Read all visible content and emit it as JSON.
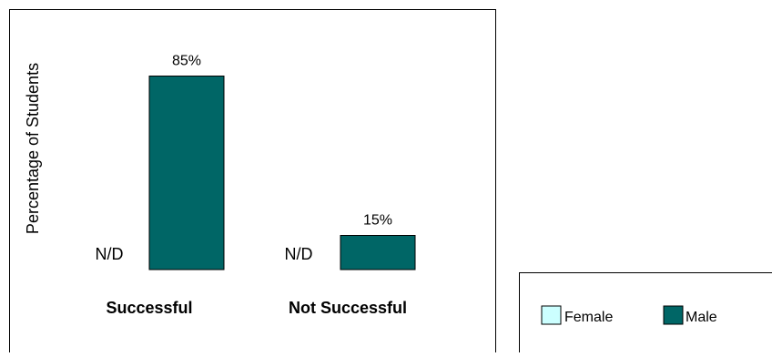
{
  "chart_data": {
    "type": "bar",
    "ylabel": "Percentage of Students",
    "categories": [
      "Successful",
      "Not Successful"
    ],
    "ylim": [
      0,
      100
    ],
    "grid": false,
    "legend_position": "bottom-right",
    "series": [
      {
        "name": "Female",
        "color": "#ccffff",
        "values": [
          null,
          null
        ],
        "labels": [
          "N/D",
          "N/D"
        ]
      },
      {
        "name": "Male",
        "color": "#006666",
        "values": [
          85,
          15
        ],
        "labels": [
          "85%",
          "15%"
        ]
      }
    ]
  }
}
